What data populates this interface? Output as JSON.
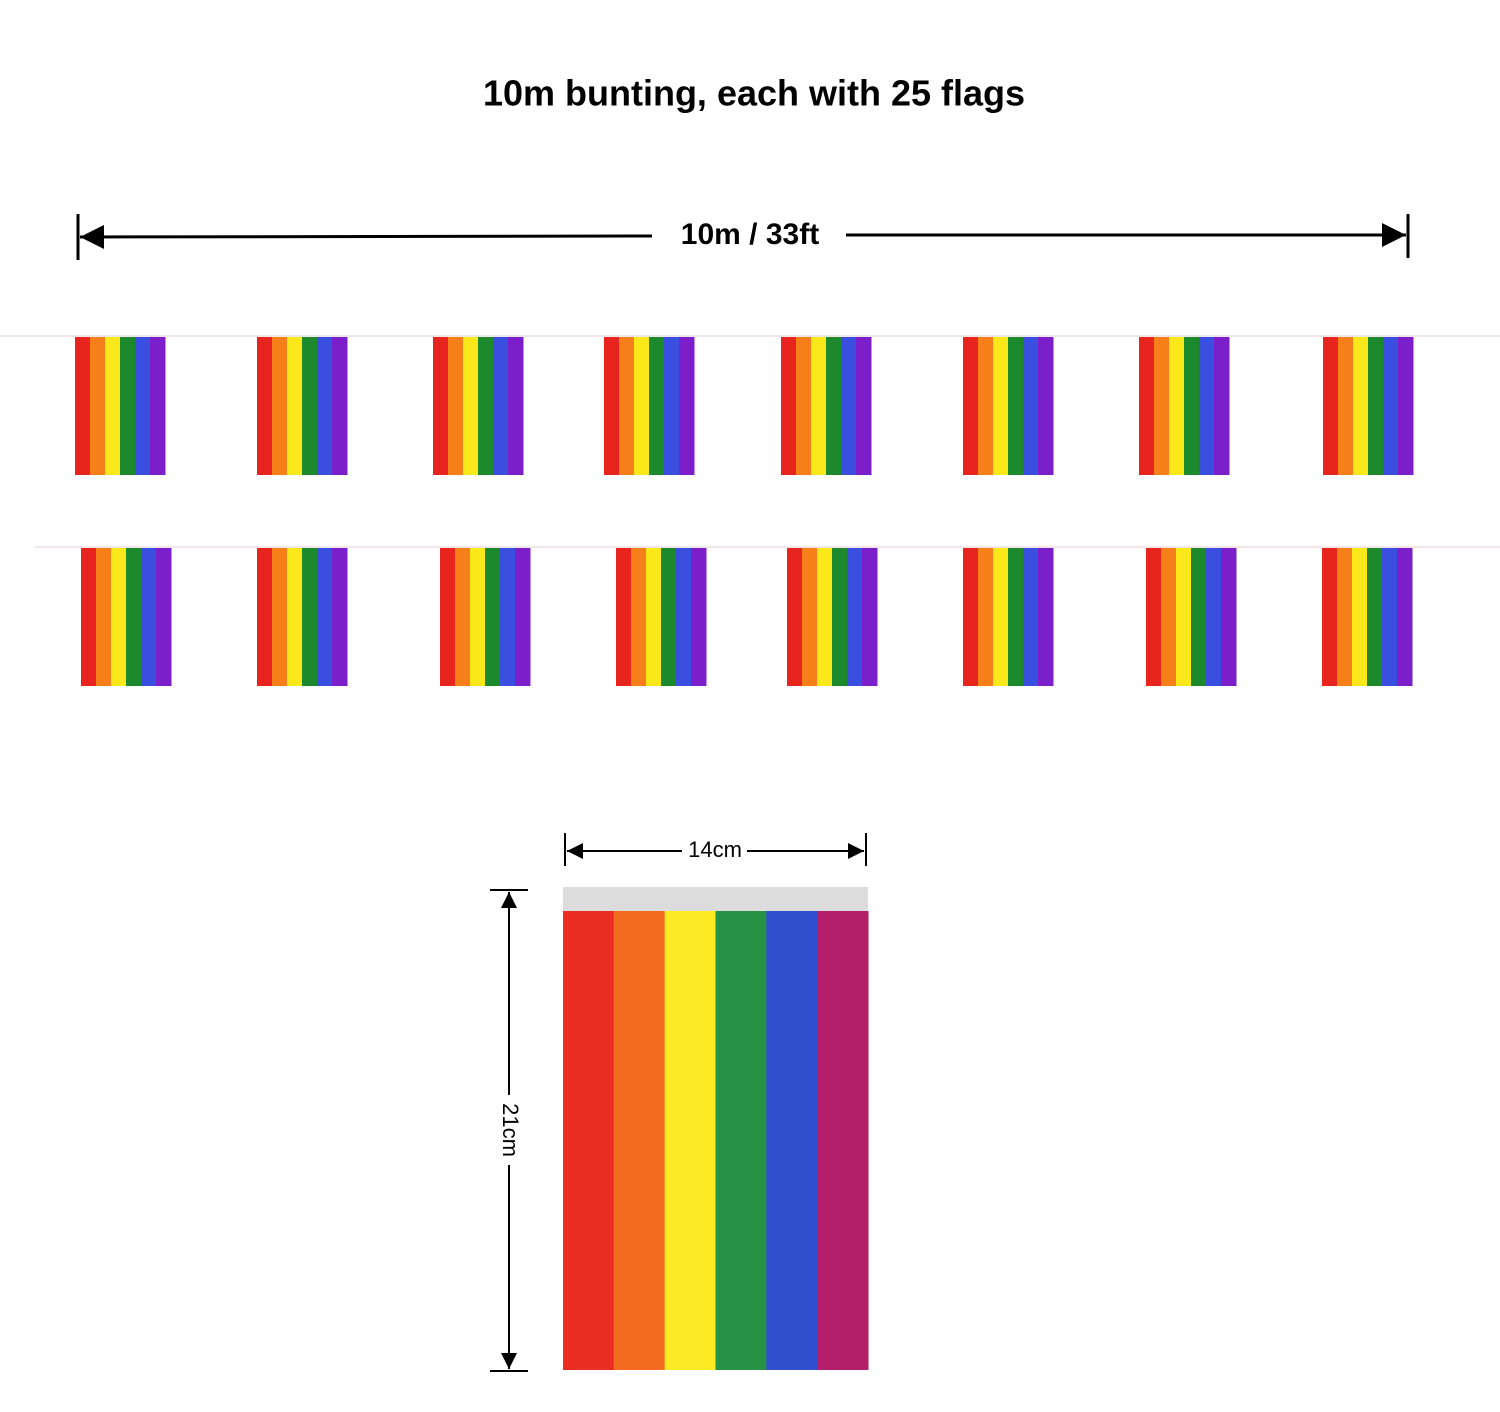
{
  "title": "10m bunting, each with 25 flags",
  "length_label": "10m / 33ft",
  "flag": {
    "width_label": "14cm",
    "height_label": "21cm"
  }
}
